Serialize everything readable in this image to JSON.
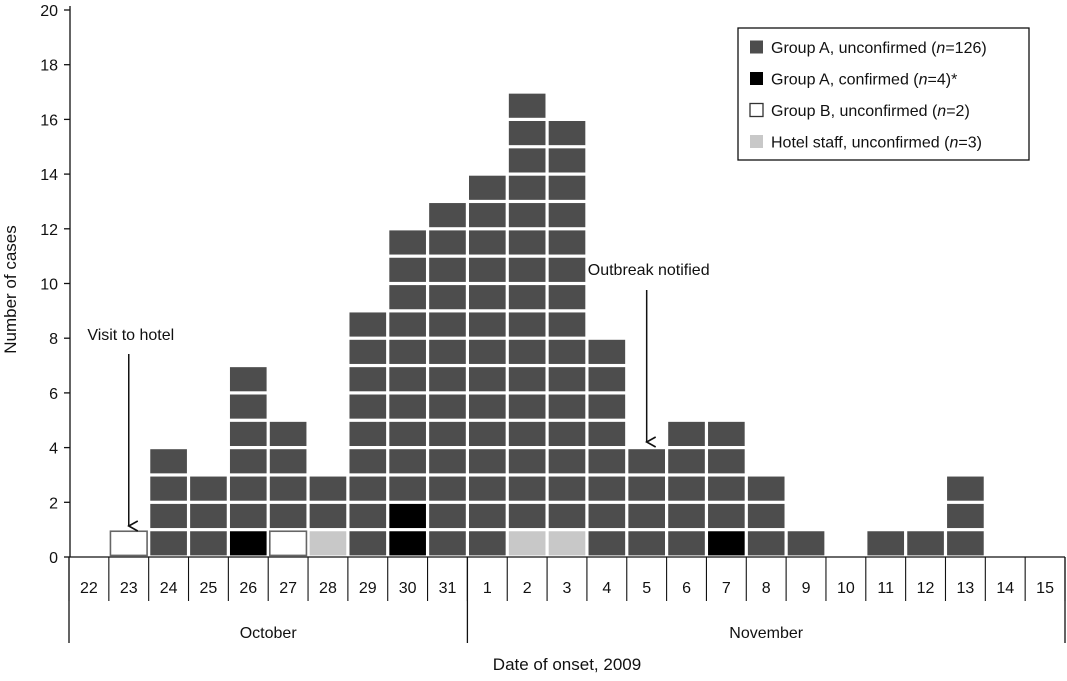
{
  "chart_data": {
    "type": "bar",
    "subtype": "stacked-unit-epicurve",
    "xlabel": "Date of onset, 2009",
    "ylabel": "Number of cases",
    "ylim": [
      0,
      20
    ],
    "yticks": [
      0,
      2,
      4,
      6,
      8,
      10,
      12,
      14,
      16,
      18,
      20
    ],
    "grid": false,
    "legend_position": "top-right",
    "categories": [
      "22",
      "23",
      "24",
      "25",
      "26",
      "27",
      "28",
      "29",
      "30",
      "31",
      "1",
      "2",
      "3",
      "4",
      "5",
      "6",
      "7",
      "8",
      "9",
      "10",
      "11",
      "12",
      "13",
      "14",
      "15"
    ],
    "months": [
      {
        "label": "October",
        "first": "22",
        "last": "31"
      },
      {
        "label": "November",
        "first": "1",
        "last": "15"
      }
    ],
    "series": [
      {
        "name": "Group A, unconfirmed",
        "legend_prefix": "Group A, unconfirmed (",
        "legend_n": "n",
        "legend_suffix": "=126)",
        "color": "#4d4d4d",
        "values": [
          0,
          0,
          4,
          3,
          6,
          4,
          2,
          9,
          10,
          13,
          14,
          16,
          15,
          8,
          4,
          5,
          4,
          3,
          1,
          0,
          1,
          1,
          3,
          0,
          0
        ]
      },
      {
        "name": "Group A, confirmed",
        "legend_prefix": "Group A, confirmed (",
        "legend_n": "n",
        "legend_suffix": "=4)*",
        "color": "#000000",
        "values": [
          0,
          0,
          0,
          0,
          1,
          0,
          0,
          0,
          2,
          0,
          0,
          0,
          0,
          0,
          0,
          0,
          1,
          0,
          0,
          0,
          0,
          0,
          0,
          0,
          0
        ]
      },
      {
        "name": "Group B, unconfirmed",
        "legend_prefix": "Group B, unconfirmed (",
        "legend_n": "n",
        "legend_suffix": "=2)",
        "color": "#ffffff",
        "values": [
          0,
          1,
          0,
          0,
          0,
          1,
          0,
          0,
          0,
          0,
          0,
          0,
          0,
          0,
          0,
          0,
          0,
          0,
          0,
          0,
          0,
          0,
          0,
          0,
          0
        ]
      },
      {
        "name": "Hotel staff, unconfirmed",
        "legend_prefix": "Hotel staff, unconfirmed (",
        "legend_n": "n",
        "legend_suffix": "=3)",
        "color": "#c8c8c8",
        "values": [
          0,
          0,
          0,
          0,
          0,
          0,
          1,
          0,
          0,
          0,
          0,
          1,
          1,
          0,
          0,
          0,
          0,
          0,
          0,
          0,
          0,
          0,
          0,
          0,
          0
        ]
      }
    ],
    "stack_order_bottom_to_top": [
      "Group A, confirmed",
      "Group B, unconfirmed",
      "Hotel staff, unconfirmed",
      "Group A, unconfirmed"
    ],
    "annotations": [
      {
        "text": "Visit to hotel",
        "x": "23"
      },
      {
        "text": "Outbreak notified",
        "x": "5"
      }
    ]
  }
}
